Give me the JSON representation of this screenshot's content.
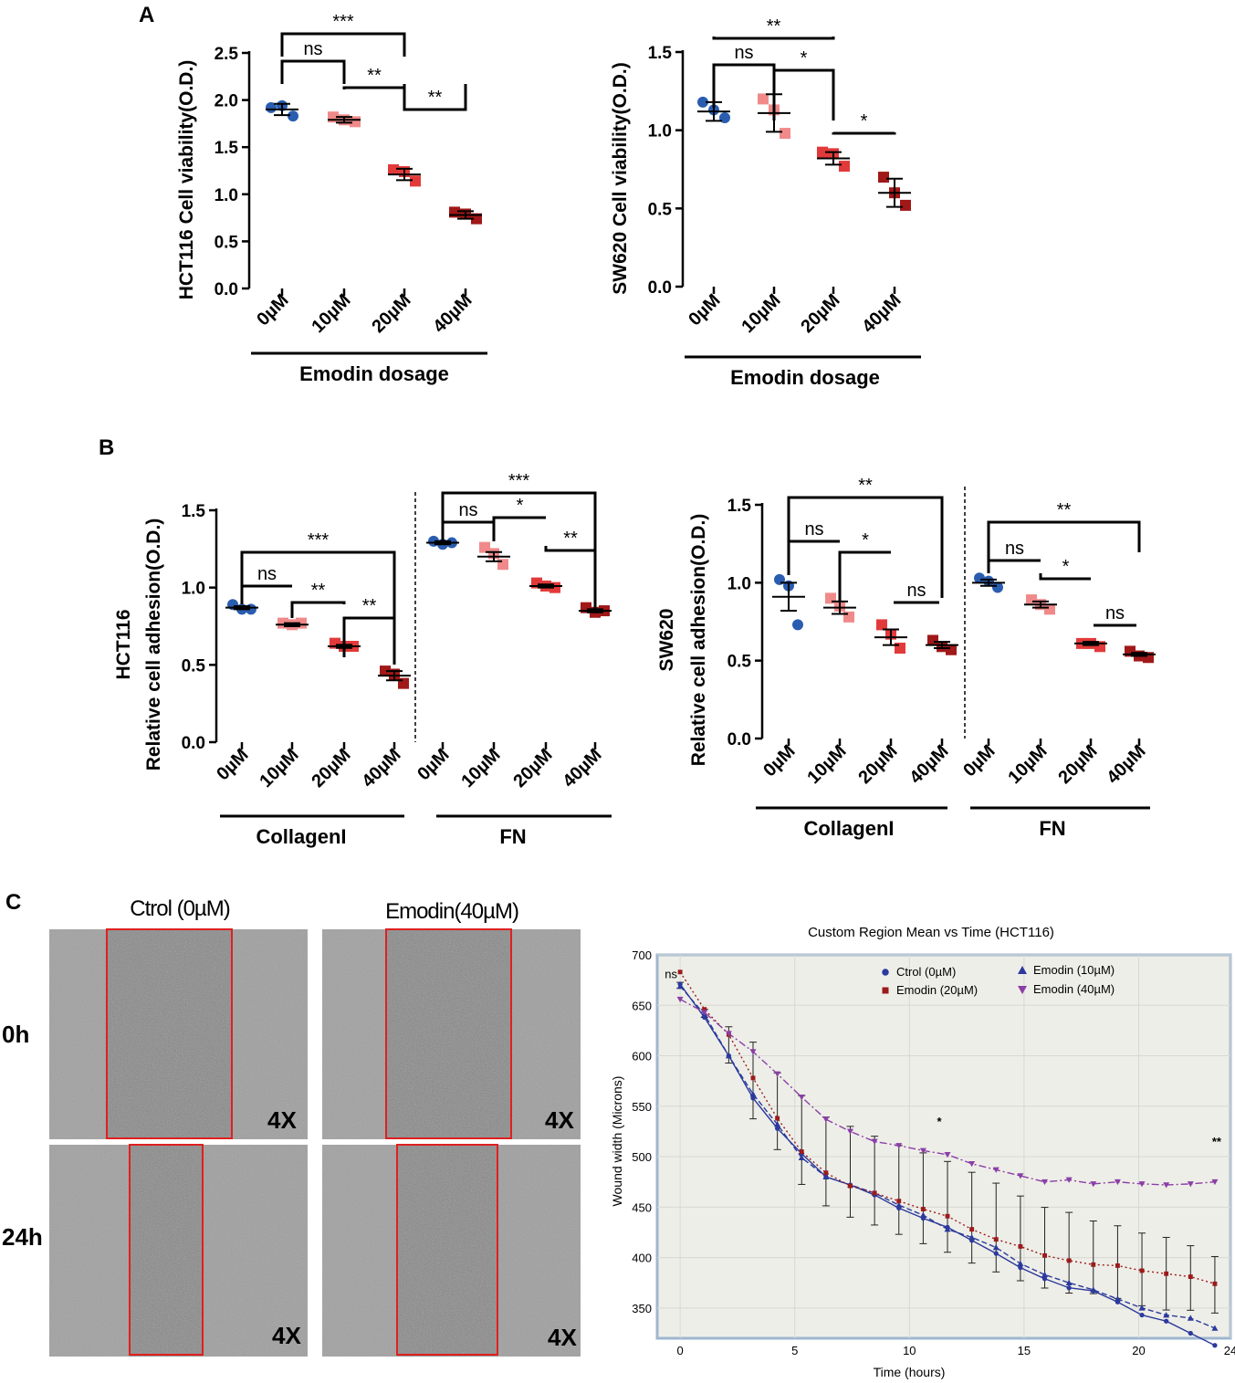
{
  "panels": {
    "A": "A",
    "B": "B",
    "C": "C"
  },
  "chart_data": [
    {
      "id": "A1",
      "type": "scatter",
      "ylabel": "HCT116 Cell viability(O.D.)",
      "xlabel": "Emodin dosage",
      "categories": [
        "0µM",
        "10µM",
        "20µM",
        "40µM"
      ],
      "ylim": [
        0,
        2.5
      ],
      "yticks": [
        0.0,
        0.5,
        1.0,
        1.5,
        2.0,
        2.5
      ],
      "points": [
        [
          1.92,
          1.94,
          1.83
        ],
        [
          1.82,
          1.79,
          1.77
        ],
        [
          1.26,
          1.24,
          1.14
        ],
        [
          0.81,
          0.79,
          0.74
        ]
      ],
      "means": [
        1.9,
        1.79,
        1.21,
        0.78
      ],
      "errors": [
        0.06,
        0.03,
        0.06,
        0.04
      ],
      "comparisons": [
        {
          "from": 0,
          "to": 1,
          "label": "ns"
        },
        {
          "from": 1,
          "to": 2,
          "label": "**"
        },
        {
          "from": 0,
          "to": 2,
          "label": "***"
        },
        {
          "from": 2,
          "to": 3,
          "label": "**"
        }
      ]
    },
    {
      "id": "A2",
      "type": "scatter",
      "ylabel": "SW620 Cell viability(O.D.)",
      "xlabel": "Emodin dosage",
      "categories": [
        "0µM",
        "10µM",
        "20µM",
        "40µM"
      ],
      "ylim": [
        0,
        1.5
      ],
      "yticks": [
        0.0,
        0.5,
        1.0,
        1.5
      ],
      "points": [
        [
          1.18,
          1.13,
          1.08
        ],
        [
          1.2,
          1.13,
          0.98
        ],
        [
          0.86,
          0.85,
          0.77
        ],
        [
          0.7,
          0.6,
          0.52
        ]
      ],
      "means": [
        1.12,
        1.11,
        0.82,
        0.6
      ],
      "errors": [
        0.06,
        0.12,
        0.04,
        0.09
      ],
      "comparisons": [
        {
          "from": 0,
          "to": 1,
          "label": "ns"
        },
        {
          "from": 1,
          "to": 2,
          "label": "*"
        },
        {
          "from": 0,
          "to": 2,
          "label": "**"
        },
        {
          "from": 2,
          "to": 3,
          "label": "*"
        }
      ]
    },
    {
      "id": "B1",
      "type": "scatter",
      "ylabel_line1": "HCT116",
      "ylabel": "Relative cell adhesion(O.D.)",
      "groups": [
        "CollagenI",
        "FN"
      ],
      "categories": [
        "0µM",
        "10µM",
        "20µM",
        "40µM",
        "0µM",
        "10µM",
        "20µM",
        "40µM"
      ],
      "ylim": [
        0,
        1.5
      ],
      "yticks": [
        0.0,
        0.5,
        1.0,
        1.5
      ],
      "points": [
        [
          0.89,
          0.86,
          0.86
        ],
        [
          0.77,
          0.76,
          0.77
        ],
        [
          0.64,
          0.62,
          0.62
        ],
        [
          0.46,
          0.44,
          0.38
        ],
        [
          1.3,
          1.28,
          1.29
        ],
        [
          1.26,
          1.22,
          1.15
        ],
        [
          1.03,
          1.01,
          1.0
        ],
        [
          0.87,
          0.84,
          0.85
        ]
      ],
      "means": [
        0.87,
        0.76,
        0.62,
        0.43,
        1.29,
        1.2,
        1.01,
        0.85
      ],
      "errors": [
        0.01,
        0.01,
        0.01,
        0.03,
        0.01,
        0.03,
        0.01,
        0.01
      ],
      "comparisons": [
        {
          "from": 0,
          "to": 1,
          "label": "ns"
        },
        {
          "from": 1,
          "to": 2,
          "label": "**"
        },
        {
          "from": 0,
          "to": 3,
          "label": "***"
        },
        {
          "from": 2,
          "to": 3,
          "label": "**"
        },
        {
          "from": 4,
          "to": 5,
          "label": "ns"
        },
        {
          "from": 5,
          "to": 6,
          "label": "*"
        },
        {
          "from": 4,
          "to": 7,
          "label": "***"
        },
        {
          "from": 6,
          "to": 7,
          "label": "**"
        }
      ]
    },
    {
      "id": "B2",
      "type": "scatter",
      "ylabel_line1": "SW620",
      "ylabel": "Relative cell adhesion(O.D.)",
      "groups": [
        "CollagenI",
        "FN"
      ],
      "categories": [
        "0µM",
        "10µM",
        "20µM",
        "40µM",
        "0µM",
        "10µM",
        "20µM",
        "40µM"
      ],
      "ylim": [
        0,
        1.5
      ],
      "yticks": [
        0.0,
        0.5,
        1.0,
        1.5
      ],
      "points": [
        [
          1.02,
          0.98,
          0.73
        ],
        [
          0.9,
          0.85,
          0.78
        ],
        [
          0.73,
          0.67,
          0.58
        ],
        [
          0.63,
          0.59,
          0.57
        ],
        [
          1.03,
          1.01,
          0.97
        ],
        [
          0.89,
          0.86,
          0.83
        ],
        [
          0.61,
          0.61,
          0.59
        ],
        [
          0.56,
          0.53,
          0.52
        ]
      ],
      "means": [
        0.91,
        0.84,
        0.65,
        0.6,
        1.0,
        0.86,
        0.61,
        0.54
      ],
      "errors": [
        0.09,
        0.04,
        0.05,
        0.02,
        0.02,
        0.02,
        0.01,
        0.01
      ],
      "comparisons": [
        {
          "from": 0,
          "to": 1,
          "label": "ns"
        },
        {
          "from": 1,
          "to": 2,
          "label": "*"
        },
        {
          "from": 0,
          "to": 3,
          "label": "**"
        },
        {
          "from": 2,
          "to": 3,
          "label": "ns"
        },
        {
          "from": 4,
          "to": 5,
          "label": "ns"
        },
        {
          "from": 5,
          "to": 6,
          "label": "*"
        },
        {
          "from": 4,
          "to": 7,
          "label": "**"
        },
        {
          "from": 6,
          "to": 7,
          "label": "ns"
        }
      ]
    },
    {
      "id": "C2",
      "type": "line",
      "title": "Custom Region Mean vs Time (HCT116)",
      "xlabel": "Time (hours)",
      "ylabel": "Wound width (Microns)",
      "xlim": [
        -1,
        24
      ],
      "ylim": [
        320,
        700
      ],
      "xticks": [
        0,
        5,
        10,
        15,
        20,
        24
      ],
      "yticks": [
        350,
        400,
        450,
        500,
        550,
        600,
        650,
        700
      ],
      "x": [
        0,
        1.06,
        2.12,
        3.18,
        4.24,
        5.3,
        6.36,
        7.42,
        8.48,
        9.54,
        10.6,
        11.66,
        12.72,
        13.78,
        14.84,
        15.9,
        16.96,
        18.02,
        19.08,
        20.14,
        21.2,
        22.26,
        23.32
      ],
      "series": [
        {
          "name": "Ctrol (0µM)",
          "marker": "circle",
          "color": "#2b3a9c",
          "dash": "solid",
          "values": [
            671,
            638,
            600,
            558,
            528,
            503,
            480,
            472,
            462,
            449,
            439,
            430,
            417,
            404,
            390,
            379,
            370,
            367,
            356,
            343,
            337,
            325,
            313
          ]
        },
        {
          "name": "Emodin (10µM)",
          "marker": "triangle-up",
          "color": "#2b3a9c",
          "dash": "dash",
          "values": [
            669,
            641,
            600,
            562,
            532,
            499,
            480,
            472,
            464,
            452,
            442,
            428,
            420,
            410,
            394,
            383,
            375,
            368,
            359,
            350,
            343,
            340,
            330
          ]
        },
        {
          "name": "Emodin (20µM)",
          "marker": "square",
          "color": "#9b1b1b",
          "dash": "dot",
          "values": [
            683,
            646,
            621,
            578,
            538,
            505,
            484,
            471,
            464,
            456,
            448,
            441,
            428,
            418,
            411,
            402,
            397,
            393,
            392,
            387,
            384,
            381,
            374
          ]
        },
        {
          "name": "Emodin (40µM)",
          "marker": "triangle-down",
          "color": "#8a3fa6",
          "dash": "dashdot",
          "values": [
            656,
            643,
            622,
            604,
            582,
            559,
            537,
            525,
            515,
            511,
            506,
            502,
            493,
            487,
            481,
            475,
            477,
            473,
            475,
            473,
            472,
            473,
            475
          ]
        }
      ],
      "errors": [
        3,
        4,
        18,
        38,
        38,
        44,
        44,
        45,
        44,
        44,
        45,
        45,
        45,
        44,
        42,
        40,
        40,
        36,
        36,
        36,
        36,
        32,
        28
      ],
      "annotations": [
        {
          "x": 0,
          "label": "ns"
        },
        {
          "x": 11.3,
          "label": "*"
        },
        {
          "x": 23.4,
          "label": "**"
        }
      ]
    }
  ],
  "micrographs": {
    "columns": [
      "Ctrol (0µM)",
      "Emodin(40µM)"
    ],
    "rows": [
      "0h",
      "24h"
    ],
    "magnification": "4X"
  }
}
